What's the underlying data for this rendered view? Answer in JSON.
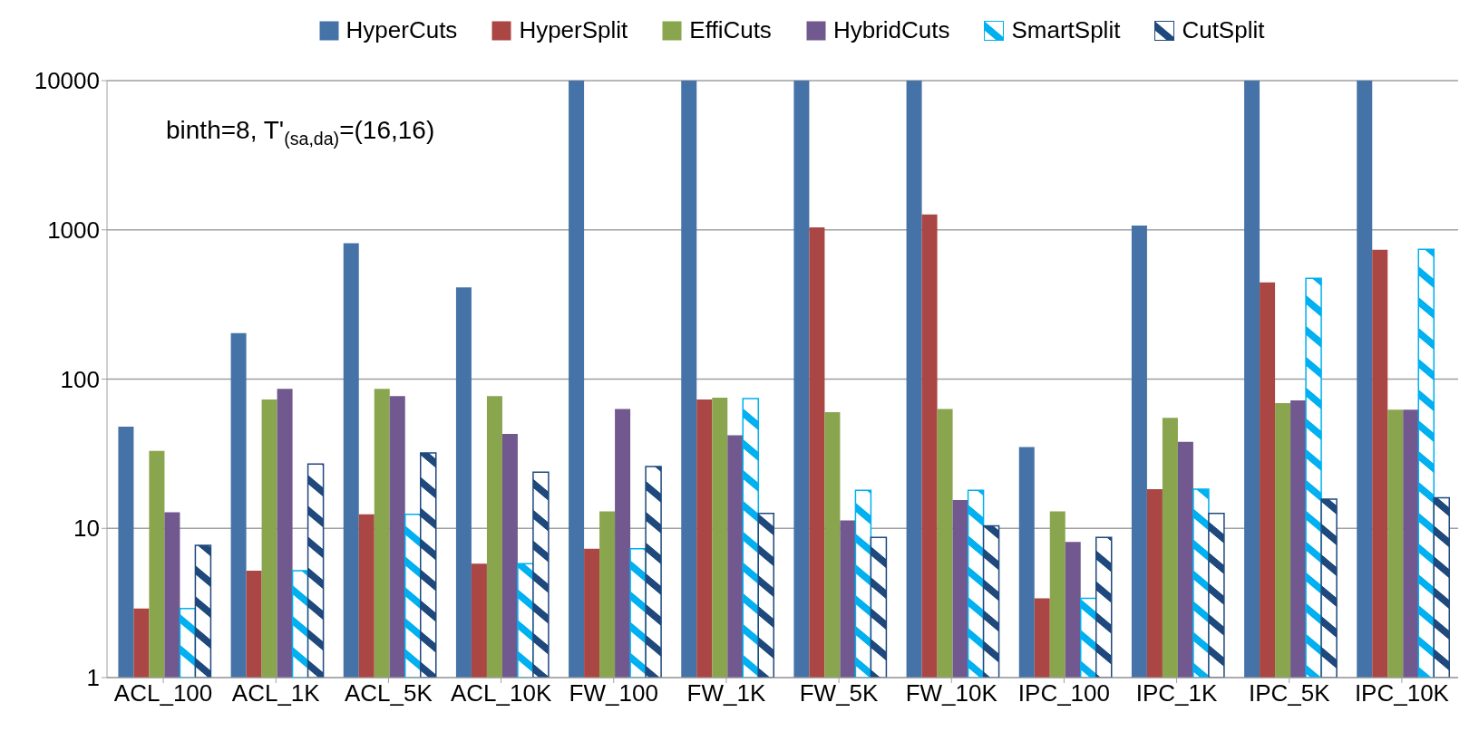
{
  "chart_data": {
    "type": "bar",
    "log": "y",
    "ylim": [
      1,
      10000
    ],
    "yticks": [
      1,
      10,
      100,
      1000,
      10000
    ],
    "grid": "y",
    "legend": "top",
    "annotations": [
      "binth=8, T'$_{(sa,da)}$=(16,16)"
    ],
    "categories": [
      "ACL_100",
      "ACL_1K",
      "ACL_5K",
      "ACL_10K",
      "FW_100",
      "FW_1K",
      "FW_5K",
      "FW_10K",
      "IPC_100",
      "IPC_1K",
      "IPC_5K",
      "IPC_10K"
    ],
    "series": [
      {
        "name": "HyperCuts",
        "color": "#4572a7",
        "values": [
          48,
          203,
          815,
          412,
          10000,
          10000,
          10000,
          10000,
          35,
          1070,
          10000,
          10000
        ]
      },
      {
        "name": "HyperSplit",
        "color": "#aa4643",
        "values": [
          2.9,
          5.2,
          12.4,
          5.8,
          7.3,
          73,
          1040,
          1270,
          3.4,
          18.3,
          445,
          736
        ]
      },
      {
        "name": "EffiCuts",
        "color": "#89a54e",
        "values": [
          33,
          73,
          86,
          77,
          13,
          75,
          60,
          63,
          13,
          55,
          69,
          62.5
        ]
      },
      {
        "name": "HybridCuts",
        "color": "#71588f",
        "values": [
          12.8,
          86,
          77,
          43,
          63,
          42,
          11.3,
          15.5,
          8.1,
          38,
          72,
          62.5
        ]
      },
      {
        "name": "SmartSplit",
        "color": "#00b0f0",
        "values": [
          2.9,
          5.2,
          12.4,
          5.8,
          7.3,
          74,
          18,
          18,
          3.4,
          18.3,
          473,
          740
        ]
      },
      {
        "name": "CutSplit",
        "color": "#1f497d",
        "values": [
          7.7,
          27,
          32,
          23.8,
          26,
          12.6,
          8.7,
          10.4,
          8.7,
          12.6,
          15.7,
          16
        ]
      }
    ]
  }
}
